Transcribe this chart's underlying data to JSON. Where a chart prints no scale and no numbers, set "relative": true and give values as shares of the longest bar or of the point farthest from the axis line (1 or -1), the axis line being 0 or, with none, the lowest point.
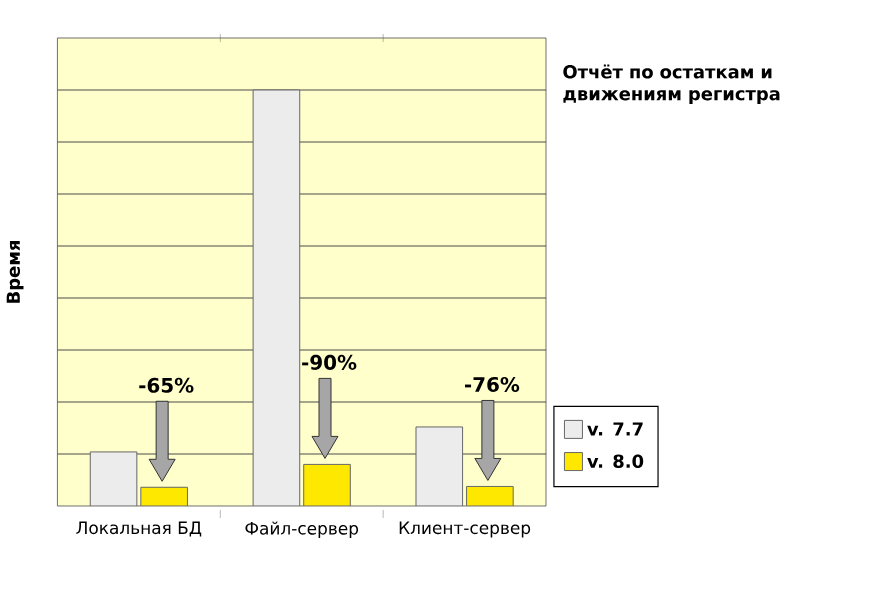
{
  "chart_data": {
    "type": "bar",
    "title": "Отчёт по остаткам и движениям регистра",
    "ylabel": "Время",
    "categories": [
      "Локальная БД",
      "Файл-сервер",
      "Клиент-сервер"
    ],
    "series": [
      {
        "name": "v. 7.7",
        "color": "#ececec",
        "values": [
          0.13,
          1,
          0.19
        ]
      },
      {
        "name": "v. 8.0",
        "color": "#ffe800",
        "values": [
          0.045,
          0.1,
          0.047
        ]
      }
    ],
    "relative": true,
    "grid": "y",
    "legend": "right",
    "annotations": [
      "-65%",
      "-90%",
      "-76%"
    ]
  }
}
